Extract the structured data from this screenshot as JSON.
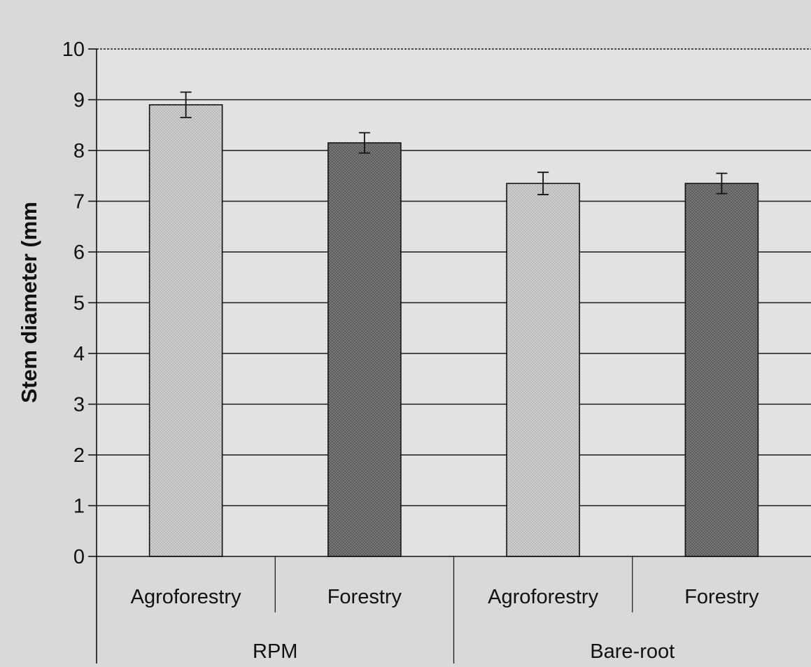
{
  "chart_data": {
    "type": "bar",
    "ylabel": "Stem diameter (mm",
    "ylim": [
      0,
      10
    ],
    "yticks": [
      "0",
      "1",
      "2",
      "3",
      "4",
      "5",
      "6",
      "7",
      "8",
      "9",
      "10"
    ],
    "grid": true,
    "categories": [
      "Agroforestry",
      "Forestry",
      "Agroforestry",
      "Forestry"
    ],
    "groups": [
      {
        "label": "RPM",
        "span": [
          0,
          1
        ]
      },
      {
        "label": "Bare-root",
        "span": [
          2,
          3
        ]
      }
    ],
    "values": [
      8.9,
      8.15,
      7.35,
      7.35
    ],
    "errors": [
      0.25,
      0.2,
      0.22,
      0.2
    ],
    "bar_colors": [
      "#cfcfcf",
      "#6e6e6e",
      "#cfcfcf",
      "#6e6e6e"
    ],
    "grid_color": "#1a1a1a",
    "plot_bg": "#e2e2e2"
  }
}
